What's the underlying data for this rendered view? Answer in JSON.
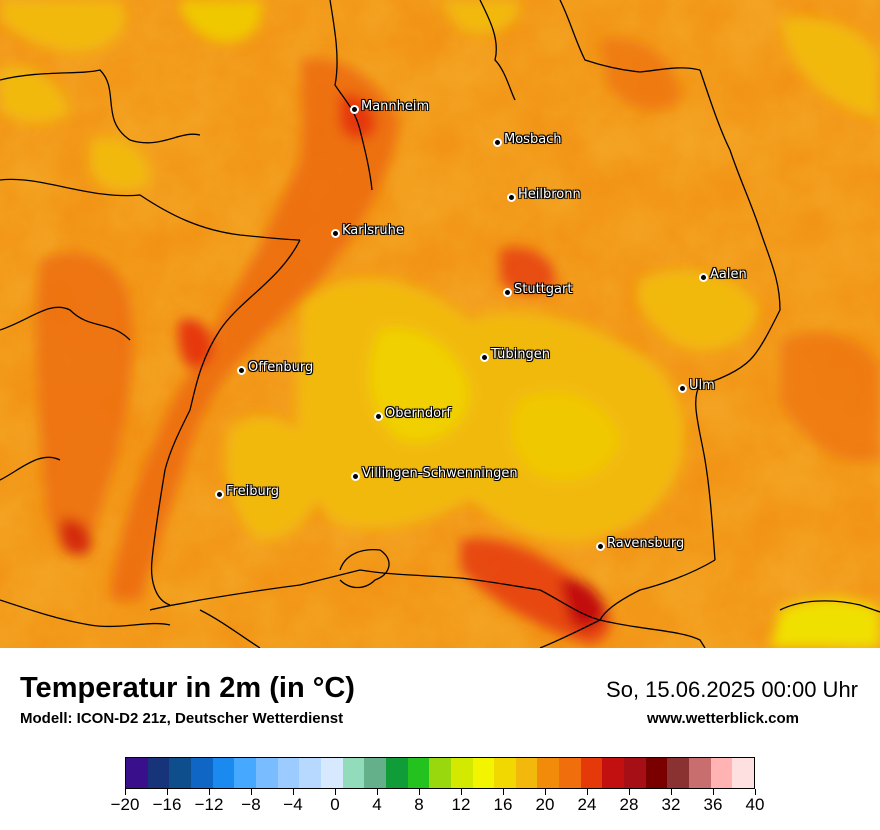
{
  "map": {
    "cities": [
      {
        "name": "Mannheim"
      },
      {
        "name": "Mosbach"
      },
      {
        "name": "Heilbronn"
      },
      {
        "name": "Karlsruhe"
      },
      {
        "name": "Stuttgart"
      },
      {
        "name": "Aalen"
      },
      {
        "name": "Tübingen"
      },
      {
        "name": "Offenburg"
      },
      {
        "name": "Ulm"
      },
      {
        "name": "Oberndorf"
      },
      {
        "name": "Villingen-Schwenningen"
      },
      {
        "name": "Freiburg"
      },
      {
        "name": "Ravensburg"
      }
    ]
  },
  "footer": {
    "title": "Temperatur in 2m (in °C)",
    "model": "Modell: ICON-D2 21z, Deutscher Wetterdienst",
    "datetime": "So, 15.06.2025 00:00 Uhr",
    "website": "www.wetterblick.com"
  },
  "legend": {
    "tick_labels": [
      "−20",
      "−16",
      "−12",
      "−8",
      "−4",
      "0",
      "4",
      "8",
      "12",
      "16",
      "20",
      "24",
      "28",
      "32",
      "36",
      "40"
    ],
    "colors": [
      "#3a0f8c",
      "#17347a",
      "#0f4e8c",
      "#1066c4",
      "#1a89f0",
      "#46a8ff",
      "#79bcff",
      "#9ccbff",
      "#b7d9ff",
      "#d6e9ff",
      "#92dcbc",
      "#63b08a",
      "#119c3a",
      "#23c21f",
      "#9ad80e",
      "#d3ea00",
      "#f3f500",
      "#f0d800",
      "#f2b90c",
      "#f28a0a",
      "#f06e0c",
      "#e5390a",
      "#c21010",
      "#a50f15",
      "#7a0000",
      "#8a3232",
      "#c86e6e",
      "#ffb3b3",
      "#ffe0e0"
    ]
  }
}
